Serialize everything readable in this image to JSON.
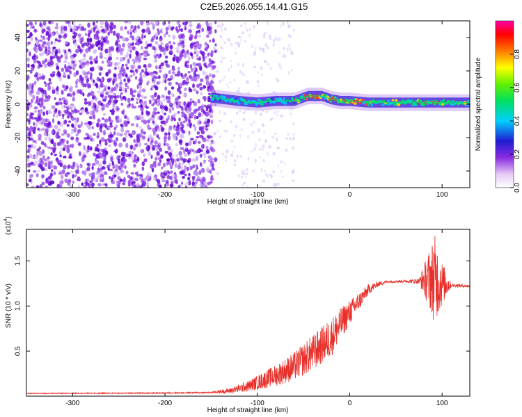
{
  "title": "C2E5.2026.055.14.41.G15",
  "chart_data": [
    {
      "type": "heatmap",
      "xlabel": "Height of straight line (km)",
      "ylabel": "Frequency (Hz)",
      "xlim": [
        -350,
        130
      ],
      "ylim": [
        -50,
        50
      ],
      "xticks": [
        -300,
        -200,
        -100,
        0,
        100
      ],
      "yticks": [
        -40,
        -20,
        0,
        20,
        40
      ],
      "colorbar": {
        "label": "Normalized spectral amplitude",
        "range": [
          0,
          1
        ],
        "ticks": [
          "0.0",
          "0.2",
          "0.4",
          "0.6",
          "0.8"
        ],
        "colormap": "rainbow (white-violet-blue-cyan-green-yellow-red-magenta)"
      },
      "signal_track": [
        {
          "x": -150,
          "y": 4
        },
        {
          "x": -120,
          "y": 2
        },
        {
          "x": -100,
          "y": 1
        },
        {
          "x": -80,
          "y": 2
        },
        {
          "x": -60,
          "y": 2
        },
        {
          "x": -45,
          "y": 5
        },
        {
          "x": -30,
          "y": 5
        },
        {
          "x": -20,
          "y": 3
        },
        {
          "x": -10,
          "y": 2
        },
        {
          "x": 0,
          "y": 2
        },
        {
          "x": 20,
          "y": 1
        },
        {
          "x": 60,
          "y": 1
        },
        {
          "x": 100,
          "y": 1
        },
        {
          "x": 130,
          "y": 1
        }
      ]
    },
    {
      "type": "line",
      "xlabel": "Height of straight line (km)",
      "ylabel": "SNR (10 * v/v)",
      "yscale_label": "(x10",
      "yscale_exp": "4",
      "ylabel_exp_suffix": ")",
      "xlim": [
        -350,
        130
      ],
      "ylim": [
        0,
        18500
      ],
      "xticks": [
        -300,
        -200,
        -100,
        0,
        100
      ],
      "yticks": [
        5000,
        10000,
        15000
      ],
      "ytick_labels": [
        "0.5",
        "1.0",
        "1.5"
      ],
      "color": "#e8302a",
      "series": [
        {
          "x": [
            -350,
            -200,
            -150,
            -130,
            -110,
            -100,
            -80,
            -60,
            -40,
            -20,
            -10,
            0,
            10,
            20,
            30,
            40,
            60,
            75,
            85,
            92,
            100,
            110,
            130
          ],
          "y": [
            300,
            350,
            400,
            600,
            1100,
            1500,
            2300,
            3300,
            4800,
            6500,
            8000,
            9300,
            10500,
            11800,
            12400,
            12700,
            12750,
            12750,
            13000,
            13000,
            12500,
            12300,
            12200
          ],
          "noise": [
            50,
            60,
            80,
            300,
            600,
            800,
            1200,
            1600,
            2000,
            2200,
            1800,
            1400,
            1000,
            600,
            300,
            150,
            150,
            300,
            3000,
            5000,
            2500,
            200,
            150
          ]
        }
      ]
    }
  ]
}
